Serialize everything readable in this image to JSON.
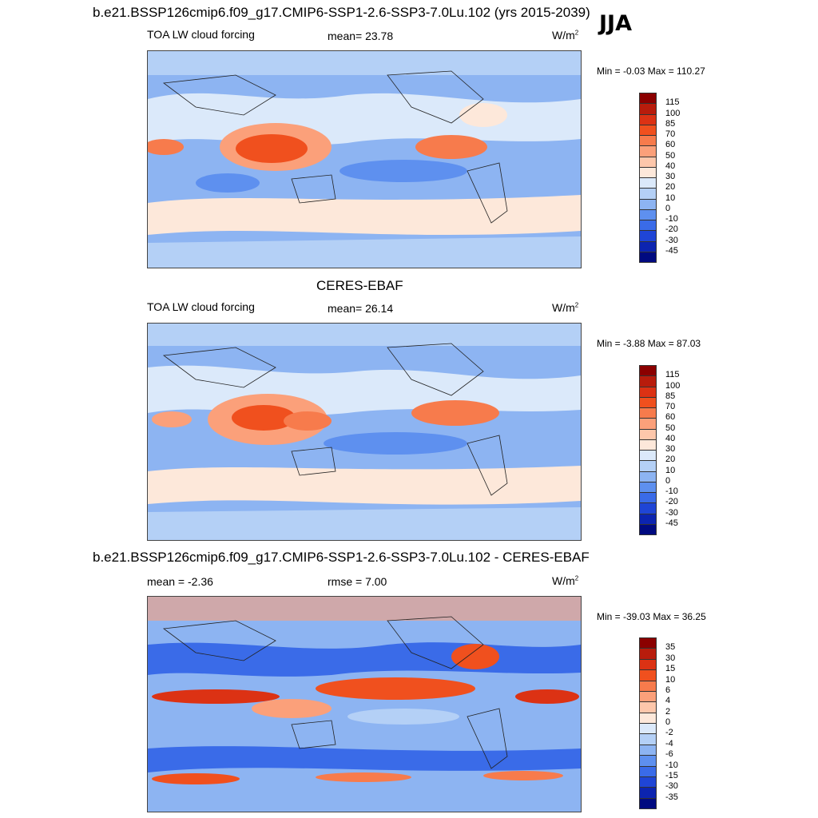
{
  "season": "JJA",
  "panels": [
    {
      "id": "model",
      "title": "b.e21.BSSP126cmip6.f09_g17.CMIP6-SSP1-2.6-SSP3-7.0Lu.102 (yrs 2015-2039)",
      "left_label": "TOA LW cloud forcing",
      "center_label": "mean=  23.78",
      "units": "W/m",
      "units_sup": "2",
      "minmax": "Min =  -0.03 Max = 110.27",
      "levels": [
        "115",
        "100",
        "85",
        "70",
        "60",
        "50",
        "40",
        "30",
        "20",
        "10",
        "0",
        "-10",
        "-20",
        "-30",
        "-45"
      ],
      "colors": [
        "#8b0000",
        "#b81c0c",
        "#dc3214",
        "#f0501e",
        "#f77b4c",
        "#fba07a",
        "#fdc7ab",
        "#fde8da",
        "#dbe9fa",
        "#b4d0f6",
        "#8db4f2",
        "#5e90ef",
        "#3a6be8",
        "#1f45d6",
        "#0c24b0",
        "#000a80"
      ]
    },
    {
      "id": "obs",
      "title": "CERES-EBAF",
      "left_label": "TOA LW cloud forcing",
      "center_label": "mean=  26.14",
      "units": "W/m",
      "units_sup": "2",
      "minmax": "Min =  -3.88 Max =  87.03",
      "levels": [
        "115",
        "100",
        "85",
        "70",
        "60",
        "50",
        "40",
        "30",
        "20",
        "10",
        "0",
        "-10",
        "-20",
        "-30",
        "-45"
      ],
      "colors": [
        "#8b0000",
        "#b81c0c",
        "#dc3214",
        "#f0501e",
        "#f77b4c",
        "#fba07a",
        "#fdc7ab",
        "#fde8da",
        "#dbe9fa",
        "#b4d0f6",
        "#8db4f2",
        "#5e90ef",
        "#3a6be8",
        "#1f45d6",
        "#0c24b0",
        "#000a80"
      ]
    },
    {
      "id": "diff",
      "title": "b.e21.BSSP126cmip6.f09_g17.CMIP6-SSP1-2.6-SSP3-7.0Lu.102 - CERES-EBAF",
      "left_label": "mean =  -2.36",
      "center_label": "rmse =   7.00",
      "units": "W/m",
      "units_sup": "2",
      "minmax": "Min = -39.03 Max =  36.25",
      "levels": [
        "35",
        "30",
        "15",
        "10",
        "6",
        "4",
        "2",
        "0",
        "-2",
        "-4",
        "-6",
        "-10",
        "-15",
        "-30",
        "-35"
      ],
      "colors": [
        "#8b0000",
        "#b81c0c",
        "#dc3214",
        "#f0501e",
        "#f77b4c",
        "#fba07a",
        "#fdc7ab",
        "#fde8da",
        "#dbe9fa",
        "#b4d0f6",
        "#8db4f2",
        "#5e90ef",
        "#3a6be8",
        "#1f45d6",
        "#0c24b0",
        "#000a80"
      ]
    }
  ]
}
